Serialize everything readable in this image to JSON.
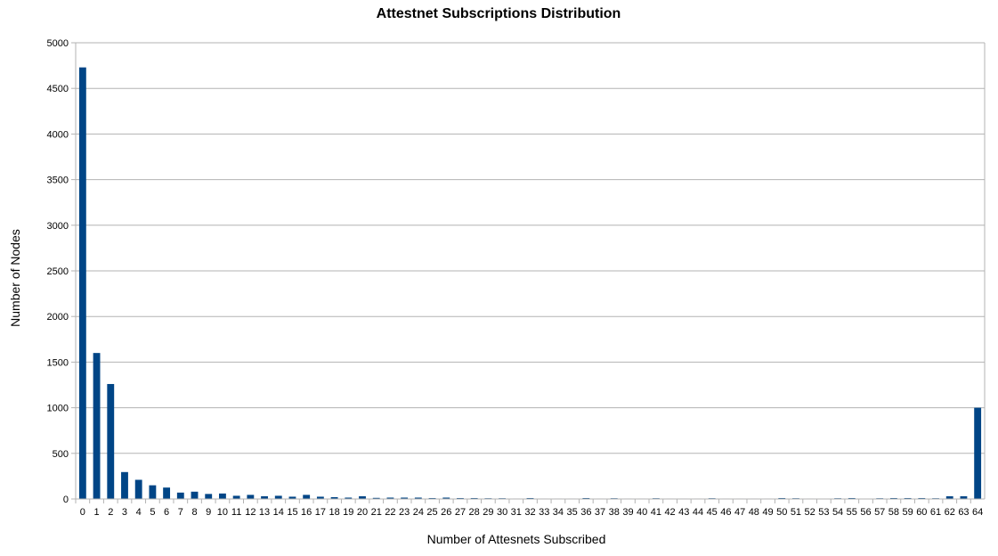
{
  "chart_data": {
    "type": "bar",
    "title": "Attestnet Subscriptions Distribution",
    "xlabel": "Number of Attesnets Subscribed",
    "ylabel": "Number of Nodes",
    "ylim": [
      0,
      5000
    ],
    "yticks": [
      "0",
      "500",
      "1000",
      "1500",
      "2000",
      "2500",
      "3000",
      "3500",
      "4000",
      "4500",
      "5000"
    ],
    "grid": true,
    "legend": "none",
    "bar_color": "#004586",
    "categories": [
      "0",
      "1",
      "2",
      "3",
      "4",
      "5",
      "6",
      "7",
      "8",
      "9",
      "10",
      "11",
      "12",
      "13",
      "14",
      "15",
      "16",
      "17",
      "18",
      "19",
      "20",
      "21",
      "22",
      "23",
      "24",
      "25",
      "26",
      "27",
      "28",
      "29",
      "30",
      "31",
      "32",
      "33",
      "34",
      "35",
      "36",
      "37",
      "38",
      "39",
      "40",
      "41",
      "42",
      "43",
      "44",
      "45",
      "46",
      "47",
      "48",
      "49",
      "50",
      "51",
      "52",
      "53",
      "54",
      "55",
      "56",
      "57",
      "58",
      "59",
      "60",
      "61",
      "62",
      "63",
      "64"
    ],
    "values": [
      4730,
      1600,
      1260,
      295,
      210,
      150,
      125,
      70,
      80,
      55,
      60,
      35,
      45,
      30,
      35,
      25,
      45,
      25,
      20,
      15,
      30,
      12,
      15,
      15,
      15,
      10,
      15,
      10,
      10,
      8,
      8,
      5,
      10,
      5,
      5,
      5,
      10,
      5,
      8,
      5,
      5,
      8,
      5,
      5,
      5,
      8,
      5,
      5,
      5,
      5,
      10,
      8,
      5,
      3,
      8,
      10,
      3,
      8,
      10,
      10,
      10,
      8,
      30,
      30,
      1000
    ]
  }
}
